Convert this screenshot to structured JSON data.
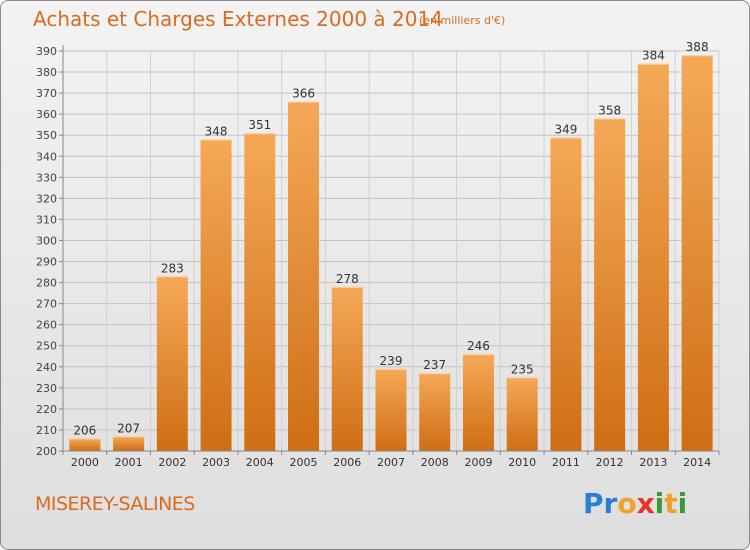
{
  "title": "Achats et Charges Externes 2000 à 2014",
  "unit": "(en milliers d'€)",
  "commune": "MISEREY-SALINES",
  "logo": {
    "letters": [
      {
        "ch": "P",
        "color": "#2a7fd4"
      },
      {
        "ch": "r",
        "color": "#2a7fd4"
      },
      {
        "ch": "o",
        "color": "#f1a12a"
      },
      {
        "ch": "x",
        "color": "#e8322a"
      },
      {
        "ch": "i",
        "color": "#3a9a3a"
      },
      {
        "ch": "t",
        "color": "#f1a12a"
      },
      {
        "ch": "i",
        "color": "#3a9a3a"
      }
    ]
  },
  "colors": {
    "bar_top": "#f5a957",
    "bar_bottom": "#cf6e14",
    "accent_text": "#d96b1f"
  },
  "chart_data": {
    "type": "bar",
    "categories": [
      "2000",
      "2001",
      "2002",
      "2003",
      "2004",
      "2005",
      "2006",
      "2007",
      "2008",
      "2009",
      "2010",
      "2011",
      "2012",
      "2013",
      "2014"
    ],
    "values": [
      206,
      207,
      283,
      348,
      351,
      366,
      278,
      239,
      237,
      246,
      235,
      349,
      358,
      384,
      388
    ],
    "ylim": [
      200,
      390
    ],
    "yticks": [
      200,
      210,
      220,
      230,
      240,
      250,
      260,
      270,
      280,
      290,
      300,
      310,
      320,
      330,
      340,
      350,
      360,
      370,
      380,
      390
    ],
    "grid": true
  }
}
